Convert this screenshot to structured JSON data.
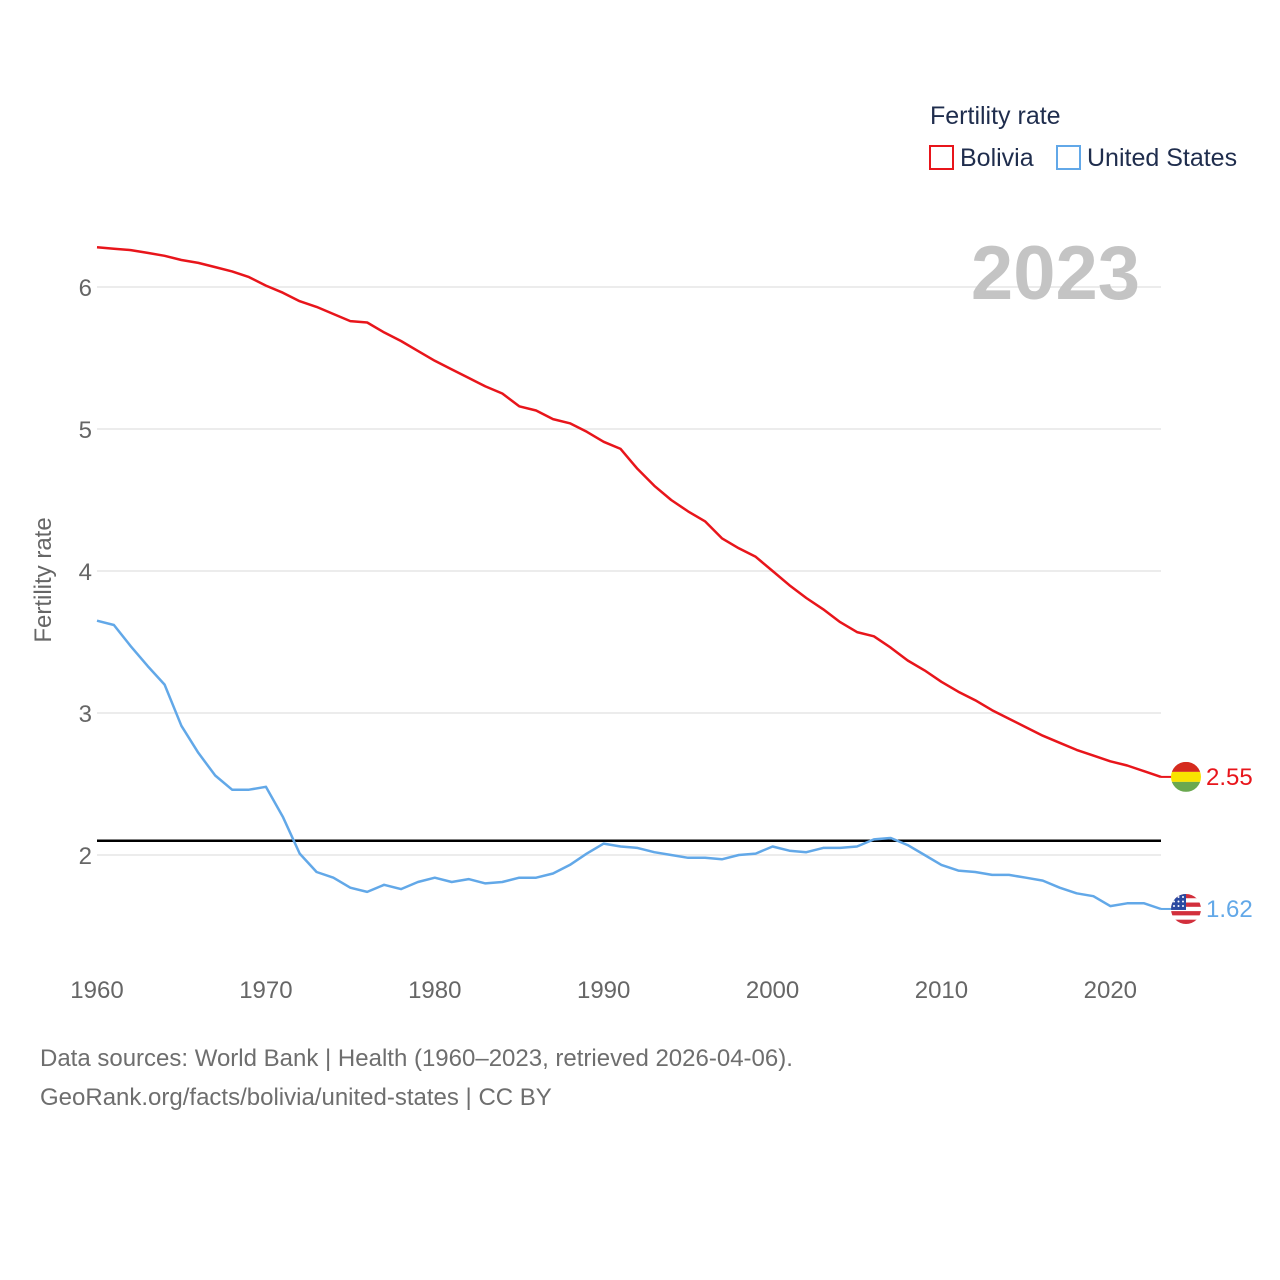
{
  "chart_data": {
    "type": "line",
    "title": "",
    "ylabel": "Fertility rate",
    "xlabel": "",
    "xlim": [
      1960,
      2023
    ],
    "ylim": [
      1.3,
      6.5
    ],
    "x_ticks": [
      1960,
      1970,
      1980,
      1990,
      2000,
      2010,
      2020
    ],
    "y_ticks": [
      2,
      3,
      4,
      5,
      6
    ],
    "grid": true,
    "legend": {
      "title": "Fertility rate",
      "position": "top-right"
    },
    "year_label": "2023",
    "reference_line": {
      "value": 2.1
    },
    "x": [
      1960,
      1961,
      1962,
      1963,
      1964,
      1965,
      1966,
      1967,
      1968,
      1969,
      1970,
      1971,
      1972,
      1973,
      1974,
      1975,
      1976,
      1977,
      1978,
      1979,
      1980,
      1981,
      1982,
      1983,
      1984,
      1985,
      1986,
      1987,
      1988,
      1989,
      1990,
      1991,
      1992,
      1993,
      1994,
      1995,
      1996,
      1997,
      1998,
      1999,
      2000,
      2001,
      2002,
      2003,
      2004,
      2005,
      2006,
      2007,
      2008,
      2009,
      2010,
      2011,
      2012,
      2013,
      2014,
      2015,
      2016,
      2017,
      2018,
      2019,
      2020,
      2021,
      2022,
      2023
    ],
    "series": [
      {
        "name": "Bolivia",
        "color": "#e8151b",
        "end_label": "2.55",
        "values": [
          6.28,
          6.27,
          6.26,
          6.24,
          6.22,
          6.19,
          6.17,
          6.14,
          6.11,
          6.07,
          6.01,
          5.96,
          5.9,
          5.86,
          5.81,
          5.76,
          5.75,
          5.68,
          5.62,
          5.55,
          5.48,
          5.42,
          5.36,
          5.3,
          5.25,
          5.16,
          5.13,
          5.07,
          5.04,
          4.98,
          4.91,
          4.86,
          4.72,
          4.6,
          4.5,
          4.42,
          4.35,
          4.23,
          4.16,
          4.1,
          4.0,
          3.9,
          3.81,
          3.73,
          3.64,
          3.57,
          3.54,
          3.46,
          3.37,
          3.3,
          3.22,
          3.15,
          3.09,
          3.02,
          2.96,
          2.9,
          2.84,
          2.79,
          2.74,
          2.7,
          2.66,
          2.63,
          2.59,
          2.55
        ]
      },
      {
        "name": "United States",
        "color": "#62a8e8",
        "end_label": "1.62",
        "values": [
          3.65,
          3.62,
          3.47,
          3.33,
          3.2,
          2.91,
          2.72,
          2.56,
          2.46,
          2.46,
          2.48,
          2.27,
          2.01,
          1.88,
          1.84,
          1.77,
          1.74,
          1.79,
          1.76,
          1.81,
          1.84,
          1.81,
          1.83,
          1.8,
          1.81,
          1.84,
          1.84,
          1.87,
          1.93,
          2.01,
          2.08,
          2.06,
          2.05,
          2.02,
          2.0,
          1.98,
          1.98,
          1.97,
          2.0,
          2.01,
          2.06,
          2.03,
          2.02,
          2.05,
          2.05,
          2.06,
          2.11,
          2.12,
          2.07,
          2.0,
          1.93,
          1.89,
          1.88,
          1.86,
          1.86,
          1.84,
          1.82,
          1.77,
          1.73,
          1.71,
          1.64,
          1.66,
          1.66,
          1.62
        ]
      }
    ]
  },
  "footer": {
    "line1": "Data sources: World Bank | Health (1960–2023, retrieved 2026-04-06).",
    "line2": "GeoRank.org/facts/bolivia/united-states | CC BY"
  }
}
